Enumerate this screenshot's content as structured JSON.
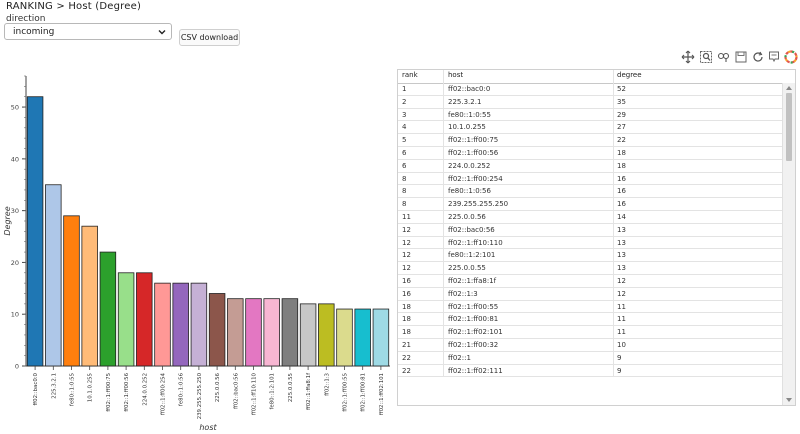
{
  "breadcrumb": "RANKING > Host (Degree)",
  "direction_label": "direction",
  "direction_select": "incoming",
  "csv_button": "CSV download",
  "toolbar_icons": [
    "pan-icon",
    "box-zoom-icon",
    "wheel-zoom-icon",
    "save-icon",
    "reset-icon",
    "hover-icon",
    "bokeh-logo-icon"
  ],
  "chart_data": {
    "type": "bar",
    "xlabel": "host",
    "ylabel": "Degree",
    "ylim": [
      0,
      56
    ],
    "yticks": [
      0,
      10,
      20,
      30,
      40,
      50
    ],
    "categories": [
      "ff02::bac0:0",
      "225.3.2.1",
      "fe80::1:0:55",
      "10.1.0.255",
      "ff02::1:ff00:75",
      "ff02::1:ff00:56",
      "224.0.0.252",
      "ff02::1:ff00:254",
      "fe80::1:0:56",
      "239.255.255.250",
      "225.0.0.56",
      "ff02::bac0:56",
      "ff02::1:ff10:110",
      "fe80::1:2:101",
      "225.0.0.55",
      "ff02::1:ffa8:1f",
      "ff02::1:3",
      "ff02::1:ff00:55",
      "ff02::1:ff00:81",
      "ff02::1:ff02:101"
    ],
    "values": [
      52,
      35,
      29,
      27,
      22,
      18,
      18,
      16,
      16,
      16,
      14,
      13,
      13,
      13,
      13,
      12,
      12,
      11,
      11,
      11
    ],
    "colors": [
      "#1f77b4",
      "#aec7e8",
      "#ff7f0e",
      "#ffbb78",
      "#2ca02c",
      "#98df8a",
      "#d62728",
      "#ff9896",
      "#9467bd",
      "#c5b0d5",
      "#8c564b",
      "#c49c94",
      "#e377c2",
      "#f7b6d2",
      "#7f7f7f",
      "#c7c7c7",
      "#bcbd22",
      "#dbdb8d",
      "#17becf",
      "#9edae5"
    ]
  },
  "table": {
    "headers": [
      "rank",
      "host",
      "degree"
    ],
    "rows": [
      [
        "1",
        "ff02::bac0:0",
        "52"
      ],
      [
        "2",
        "225.3.2.1",
        "35"
      ],
      [
        "3",
        "fe80::1:0:55",
        "29"
      ],
      [
        "4",
        "10.1.0.255",
        "27"
      ],
      [
        "5",
        "ff02::1:ff00:75",
        "22"
      ],
      [
        "6",
        "ff02::1:ff00:56",
        "18"
      ],
      [
        "6",
        "224.0.0.252",
        "18"
      ],
      [
        "8",
        "ff02::1:ff00:254",
        "16"
      ],
      [
        "8",
        "fe80::1:0:56",
        "16"
      ],
      [
        "8",
        "239.255.255.250",
        "16"
      ],
      [
        "11",
        "225.0.0.56",
        "14"
      ],
      [
        "12",
        "ff02::bac0:56",
        "13"
      ],
      [
        "12",
        "ff02::1:ff10:110",
        "13"
      ],
      [
        "12",
        "fe80::1:2:101",
        "13"
      ],
      [
        "12",
        "225.0.0.55",
        "13"
      ],
      [
        "16",
        "ff02::1:ffa8:1f",
        "12"
      ],
      [
        "16",
        "ff02::1:3",
        "12"
      ],
      [
        "18",
        "ff02::1:ff00:55",
        "11"
      ],
      [
        "18",
        "ff02::1:ff00:81",
        "11"
      ],
      [
        "18",
        "ff02::1:ff02:101",
        "11"
      ],
      [
        "21",
        "ff02::1:ff00:32",
        "10"
      ],
      [
        "22",
        "ff02::1",
        "9"
      ],
      [
        "22",
        "ff02::1:ff02:111",
        "9"
      ]
    ]
  }
}
